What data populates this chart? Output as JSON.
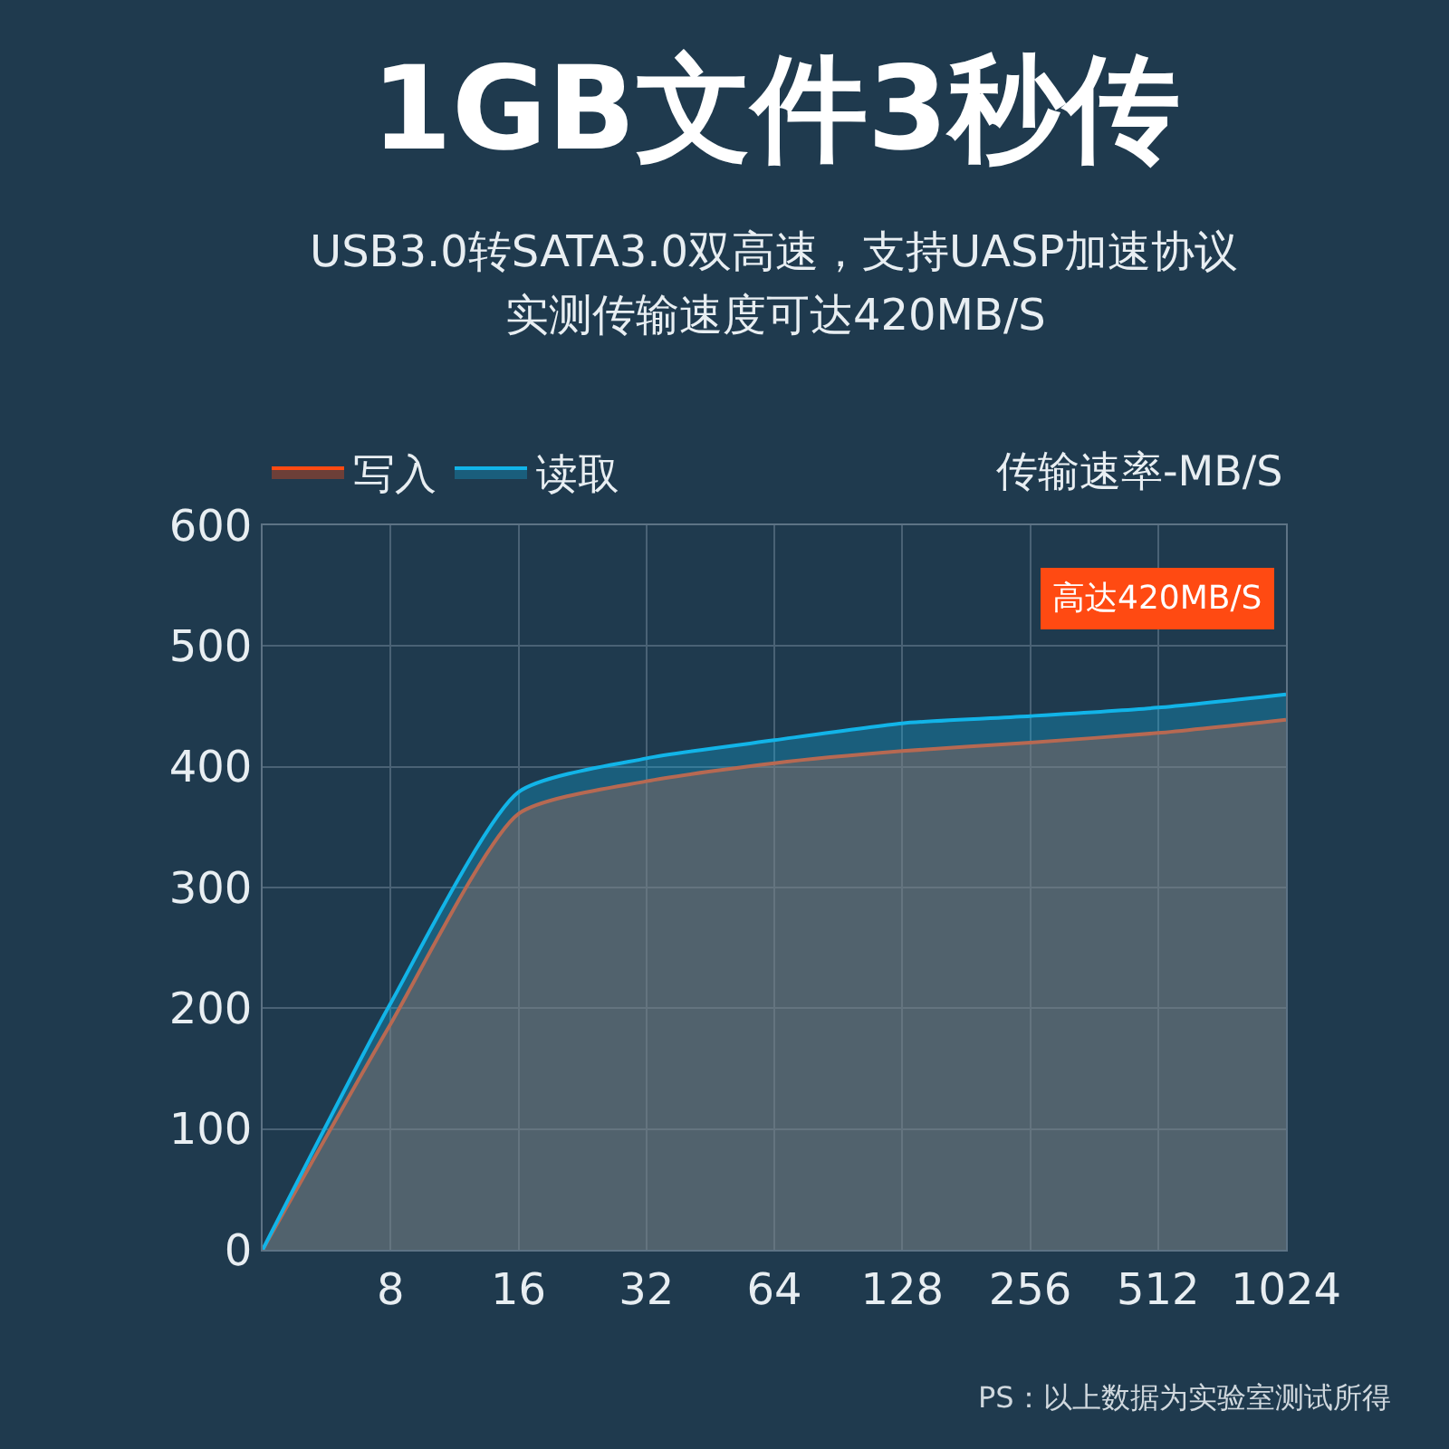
{
  "chart_data": {
    "type": "area",
    "title": "1GB文件3秒传",
    "subtitle": "USB3.0转SATA3.0双高速，支持UASP加速协议",
    "ylabel": "传输速率-MB/S",
    "categories": [
      null,
      "8",
      "16",
      "32",
      "64",
      "128",
      "256",
      "512",
      "1024"
    ],
    "series": [
      {
        "name": "写入",
        "color": "#ff4a12",
        "values": [
          0,
          187,
          361,
          388,
          403,
          413,
          420,
          428,
          439
        ]
      },
      {
        "name": "读取",
        "color": "#12b4e8",
        "values": [
          0,
          204,
          379,
          407,
          422,
          436,
          442,
          449,
          460
        ]
      }
    ],
    "ylim": [
      0,
      600
    ],
    "yticks": [
      0,
      100,
      200,
      300,
      400,
      500,
      600
    ],
    "grid": true,
    "legend": "top",
    "annotations": [
      "实测传输速度可达420MB/S",
      "高达420MB/S",
      "PS：以上数据为实验室测试所得"
    ]
  }
}
